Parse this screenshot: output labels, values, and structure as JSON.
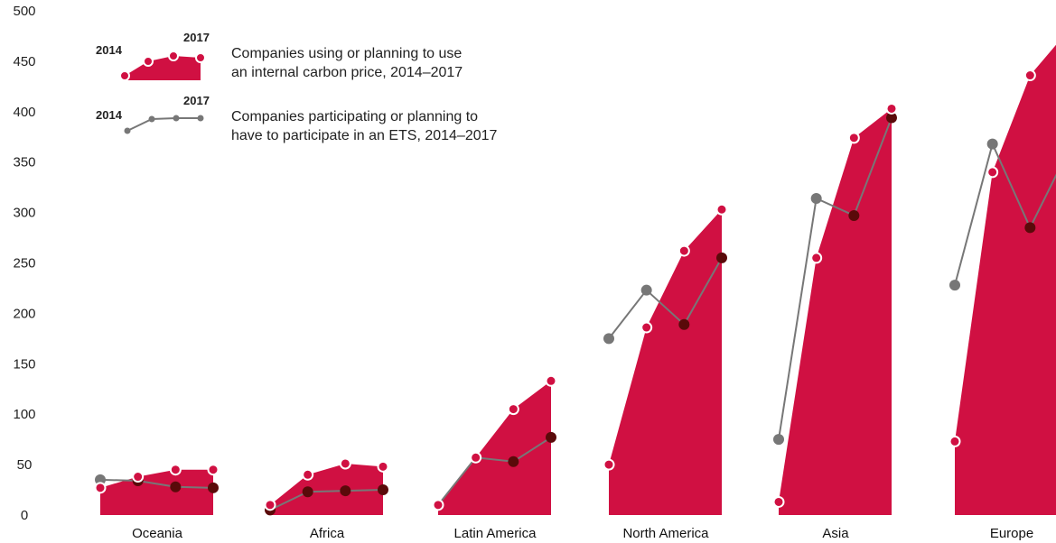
{
  "chart_data": {
    "type": "area",
    "title": "",
    "xlabel": "",
    "ylabel": "",
    "ylim": [
      0,
      500
    ],
    "yticks": [
      0,
      50,
      100,
      150,
      200,
      250,
      300,
      350,
      400,
      450,
      500
    ],
    "categories": [
      "Oceania",
      "Africa",
      "Latin America",
      "North America",
      "Asia",
      "Europe"
    ],
    "years": [
      2014,
      2015,
      2016,
      2017
    ],
    "colors": {
      "area": "#d01042",
      "line": "#777777",
      "marker_dark": "#5a0a0a",
      "grid": "#ffffff"
    },
    "series": [
      {
        "name": "Companies using or planning to use an internal carbon price, 2014–2017",
        "style": "area",
        "values": [
          [
            27,
            38,
            45,
            45
          ],
          [
            10,
            40,
            51,
            48
          ],
          [
            10,
            57,
            105,
            133
          ],
          [
            50,
            186,
            262,
            303
          ],
          [
            13,
            255,
            374,
            403
          ],
          [
            73,
            340,
            436,
            480
          ]
        ]
      },
      {
        "name": "Companies participating or planning to have to participate in an ETS, 2014–2017",
        "style": "line",
        "values": [
          [
            35,
            34,
            28,
            27
          ],
          [
            5,
            23,
            24,
            25
          ],
          [
            10,
            57,
            53,
            77
          ],
          [
            175,
            223,
            189,
            255
          ],
          [
            75,
            314,
            297,
            394
          ],
          [
            228,
            368,
            285,
            360
          ]
        ]
      }
    ],
    "legend": {
      "placement": "top-left",
      "items": [
        {
          "start_label": "2014",
          "end_label": "2017",
          "text_line1": "Companies using or planning to use",
          "text_line2": "an internal carbon price, 2014–2017"
        },
        {
          "start_label": "2014",
          "end_label": "2017",
          "text_line1": "Companies participating or planning to",
          "text_line2": "have to participate in an ETS, 2014–2017"
        }
      ]
    }
  }
}
